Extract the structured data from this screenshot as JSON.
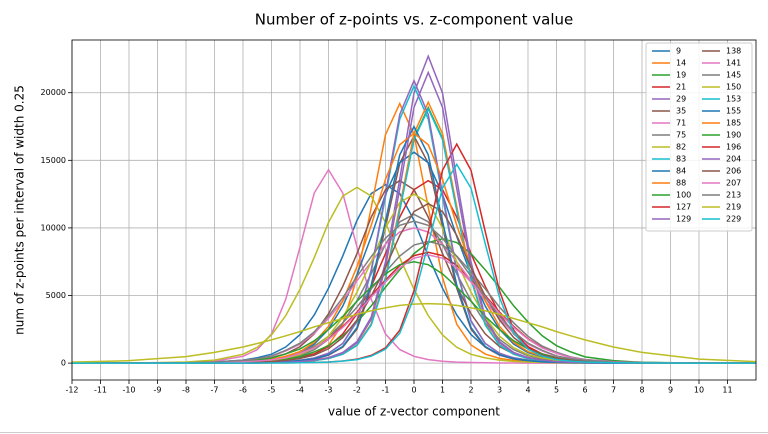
{
  "chart_data": {
    "type": "line",
    "title": "Number of z-points vs. z-component value",
    "xlabel": "value of z-vector component",
    "ylabel": "num of z-points per interval of width 0.25",
    "xlim": [
      -12,
      12
    ],
    "ylim": [
      -1250,
      23900
    ],
    "xticks": [
      -12,
      -11,
      -10,
      -9,
      -8,
      -7,
      -6,
      -5,
      -4,
      -3,
      -2,
      -1,
      0,
      1,
      2,
      3,
      4,
      5,
      6,
      7,
      8,
      9,
      10,
      11
    ],
    "yticks": [
      0,
      5000,
      10000,
      15000,
      20000
    ],
    "grid": true,
    "legend": "upper right",
    "x": [
      -12,
      -10,
      -8,
      -7,
      -6,
      -5.5,
      -5,
      -4.5,
      -4,
      -3.5,
      -3,
      -2.5,
      -2,
      -1.5,
      -1,
      -0.5,
      0,
      0.5,
      1,
      1.5,
      2,
      2.5,
      3,
      3.5,
      4,
      4.5,
      5,
      5.5,
      6,
      7,
      8,
      10,
      12
    ],
    "series": [
      {
        "name": "9",
        "color": "#1f77b4",
        "values": [
          0,
          0,
          30,
          80,
          220,
          400,
          660,
          1190,
          2110,
          3560,
          5540,
          7920,
          10560,
          12540,
          13200,
          12540,
          10560,
          7920,
          5540,
          3560,
          2110,
          1190,
          660,
          400,
          220,
          130,
          80,
          50,
          30,
          0,
          0,
          0,
          0
        ]
      },
      {
        "name": "14",
        "color": "#ff7f0e",
        "values": [
          0,
          0,
          0,
          20,
          40,
          60,
          100,
          190,
          350,
          670,
          1340,
          2880,
          6340,
          11520,
          16900,
          19200,
          16900,
          11520,
          6340,
          2880,
          1340,
          670,
          350,
          190,
          100,
          60,
          40,
          20,
          20,
          0,
          0,
          0,
          0
        ]
      },
      {
        "name": "19",
        "color": "#2ca02c",
        "values": [
          0,
          0,
          0,
          0,
          20,
          20,
          40,
          60,
          90,
          190,
          340,
          660,
          1320,
          2840,
          6240,
          11340,
          16630,
          18900,
          16630,
          11340,
          6240,
          2840,
          1320,
          660,
          340,
          190,
          90,
          60,
          40,
          20,
          0,
          0,
          0
        ]
      },
      {
        "name": "21",
        "color": "#d62728",
        "values": [
          0,
          0,
          0,
          10,
          50,
          80,
          140,
          230,
          410,
          680,
          1220,
          2160,
          3650,
          5670,
          8100,
          10800,
          12830,
          13500,
          12830,
          10800,
          8100,
          5670,
          3650,
          2160,
          1220,
          680,
          410,
          230,
          140,
          50,
          10,
          0,
          0
        ]
      },
      {
        "name": "29",
        "color": "#9467bd",
        "values": [
          0,
          0,
          0,
          0,
          20,
          20,
          50,
          70,
          110,
          230,
          410,
          790,
          1590,
          3410,
          7490,
          13620,
          19980,
          22700,
          19980,
          13620,
          7490,
          3410,
          1590,
          790,
          410,
          230,
          110,
          70,
          50,
          20,
          0,
          0,
          0
        ]
      },
      {
        "name": "35",
        "color": "#8c564b",
        "values": [
          0,
          0,
          0,
          0,
          20,
          30,
          50,
          80,
          170,
          300,
          590,
          1180,
          2520,
          5540,
          10080,
          14780,
          16800,
          14780,
          10080,
          5540,
          2520,
          1180,
          590,
          300,
          170,
          80,
          50,
          30,
          20,
          0,
          0,
          0,
          0
        ]
      },
      {
        "name": "71",
        "color": "#e377c2",
        "values": [
          0,
          0,
          40,
          140,
          500,
          1000,
          2150,
          4720,
          8580,
          12580,
          14300,
          12580,
          8580,
          4720,
          2150,
          1000,
          500,
          260,
          140,
          70,
          40,
          30,
          10,
          10,
          0,
          0,
          0,
          0,
          0,
          0,
          0,
          0,
          0
        ]
      },
      {
        "name": "75",
        "color": "#7f7f7f",
        "values": [
          0,
          0,
          0,
          20,
          70,
          110,
          190,
          330,
          550,
          990,
          1760,
          2970,
          4620,
          6600,
          8800,
          10450,
          11000,
          10450,
          8800,
          6600,
          4620,
          2970,
          1760,
          990,
          550,
          330,
          190,
          110,
          70,
          20,
          0,
          0,
          0
        ]
      },
      {
        "name": "82",
        "color": "#bcbd22",
        "values": [
          0,
          0,
          80,
          220,
          650,
          1170,
          2080,
          3510,
          5460,
          7800,
          10400,
          12350,
          13000,
          12350,
          10400,
          7800,
          5460,
          3510,
          2080,
          1170,
          650,
          390,
          220,
          130,
          80,
          50,
          30,
          10,
          0,
          0,
          0,
          0,
          0
        ]
      },
      {
        "name": "83",
        "color": "#17becf",
        "values": [
          0,
          0,
          0,
          0,
          20,
          40,
          60,
          100,
          210,
          370,
          720,
          1440,
          3080,
          6770,
          12300,
          18040,
          20500,
          18040,
          12300,
          6770,
          3080,
          1440,
          720,
          370,
          210,
          100,
          60,
          40,
          20,
          0,
          0,
          0,
          0
        ]
      },
      {
        "name": "84",
        "color": "#1f77b4",
        "values": [
          0,
          0,
          0,
          30,
          90,
          160,
          270,
          470,
          780,
          1400,
          2500,
          4210,
          6550,
          9360,
          12480,
          14820,
          15600,
          14820,
          12480,
          9360,
          6550,
          4210,
          2500,
          1400,
          780,
          470,
          270,
          160,
          90,
          30,
          0,
          0,
          0
        ]
      },
      {
        "name": "88",
        "color": "#ff7f0e",
        "values": [
          0,
          0,
          0,
          0,
          20,
          20,
          40,
          60,
          100,
          190,
          350,
          680,
          1350,
          2900,
          6370,
          11580,
          16980,
          19300,
          16980,
          11580,
          6370,
          2900,
          1350,
          680,
          350,
          190,
          100,
          60,
          40,
          20,
          0,
          0,
          0
        ]
      },
      {
        "name": "100",
        "color": "#2ca02c",
        "values": [
          0,
          0,
          0,
          20,
          60,
          110,
          180,
          280,
          460,
          830,
          1290,
          2020,
          3040,
          4230,
          5610,
          6900,
          8100,
          8920,
          9200,
          8920,
          8100,
          6900,
          5610,
          4230,
          3040,
          2020,
          1290,
          830,
          460,
          180,
          60,
          0,
          0
        ]
      },
      {
        "name": "127",
        "color": "#d62728",
        "values": [
          0,
          0,
          10,
          30,
          100,
          160,
          250,
          410,
          740,
          1150,
          1800,
          2710,
          3770,
          5000,
          6150,
          7220,
          7950,
          8200,
          7950,
          7220,
          6150,
          5000,
          3770,
          2710,
          1800,
          1150,
          740,
          410,
          250,
          100,
          30,
          0,
          0
        ]
      },
      {
        "name": "129",
        "color": "#9467bd",
        "values": [
          0,
          0,
          0,
          0,
          20,
          40,
          60,
          100,
          210,
          380,
          730,
          1460,
          3140,
          6900,
          12540,
          18390,
          20900,
          18390,
          12540,
          6900,
          3140,
          1460,
          730,
          380,
          210,
          100,
          60,
          40,
          20,
          0,
          0,
          0,
          0
        ]
      },
      {
        "name": "138",
        "color": "#8c564b",
        "values": [
          0,
          0,
          10,
          50,
          140,
          230,
          410,
          680,
          1220,
          2160,
          3650,
          5670,
          8100,
          10800,
          12830,
          13500,
          12830,
          10800,
          8100,
          5670,
          3650,
          2160,
          1220,
          680,
          410,
          230,
          140,
          80,
          50,
          10,
          0,
          0,
          0
        ]
      },
      {
        "name": "141",
        "color": "#e377c2",
        "values": [
          0,
          0,
          20,
          70,
          200,
          300,
          500,
          900,
          1400,
          2200,
          3300,
          4600,
          6100,
          7500,
          8800,
          9700,
          10000,
          9700,
          8800,
          7500,
          6100,
          4600,
          3300,
          2200,
          1400,
          900,
          500,
          300,
          200,
          70,
          20,
          0,
          0
        ]
      },
      {
        "name": "145",
        "color": "#7f7f7f",
        "values": [
          0,
          0,
          10,
          40,
          110,
          180,
          270,
          450,
          810,
          1260,
          1980,
          2970,
          4140,
          5490,
          6750,
          7920,
          8730,
          9000,
          8730,
          7920,
          6750,
          5490,
          4140,
          2970,
          1980,
          1260,
          810,
          450,
          270,
          110,
          40,
          0,
          0
        ]
      },
      {
        "name": "150",
        "color": "#bcbd22",
        "values": [
          0,
          0,
          0,
          30,
          80,
          130,
          210,
          380,
          630,
          1130,
          2000,
          3380,
          5250,
          7500,
          10000,
          11880,
          12500,
          11880,
          10000,
          7500,
          5250,
          3380,
          2000,
          1130,
          630,
          380,
          210,
          130,
          80,
          30,
          0,
          0,
          0
        ]
      },
      {
        "name": "153",
        "color": "#17becf",
        "values": [
          0,
          0,
          0,
          0,
          20,
          20,
          40,
          60,
          90,
          190,
          340,
          660,
          1320,
          2820,
          6200,
          11280,
          16540,
          18800,
          16540,
          11280,
          6200,
          2820,
          1320,
          660,
          340,
          190,
          90,
          60,
          40,
          20,
          0,
          0,
          0
        ]
      },
      {
        "name": "155",
        "color": "#1f77b4",
        "values": [
          0,
          0,
          0,
          0,
          20,
          40,
          50,
          90,
          180,
          320,
          610,
          1230,
          2630,
          5780,
          10500,
          15400,
          17500,
          15400,
          10500,
          5780,
          2630,
          1230,
          610,
          320,
          180,
          90,
          50,
          40,
          20,
          0,
          0,
          0,
          0
        ]
      },
      {
        "name": "185",
        "color": "#ff7f0e",
        "values": [
          0,
          0,
          0,
          30,
          100,
          170,
          290,
          510,
          850,
          1530,
          2720,
          4590,
          7140,
          10200,
          13600,
          16150,
          17000,
          16150,
          13600,
          10200,
          7140,
          4590,
          2720,
          1530,
          850,
          510,
          290,
          170,
          100,
          30,
          0,
          0,
          0
        ]
      },
      {
        "name": "190",
        "color": "#2ca02c",
        "values": [
          0,
          0,
          20,
          50,
          150,
          230,
          380,
          680,
          1050,
          1650,
          2480,
          3450,
          4580,
          5630,
          6600,
          7280,
          7500,
          7280,
          6600,
          5630,
          4580,
          3450,
          2480,
          1650,
          1050,
          680,
          380,
          230,
          150,
          50,
          20,
          0,
          0
        ]
      },
      {
        "name": "196",
        "color": "#d62728",
        "values": [
          0,
          0,
          0,
          0,
          0,
          0,
          20,
          20,
          30,
          50,
          80,
          160,
          290,
          570,
          1130,
          2430,
          5350,
          9720,
          14260,
          16200,
          14260,
          9720,
          5350,
          2430,
          1130,
          570,
          290,
          160,
          80,
          30,
          20,
          0,
          0
        ]
      },
      {
        "name": "204",
        "color": "#9467bd",
        "values": [
          0,
          0,
          0,
          0,
          20,
          20,
          40,
          60,
          110,
          220,
          390,
          750,
          1510,
          3230,
          7100,
          12900,
          18920,
          21500,
          18920,
          12900,
          7100,
          3230,
          1510,
          750,
          390,
          220,
          110,
          60,
          40,
          20,
          0,
          0,
          0
        ]
      },
      {
        "name": "206",
        "color": "#8c564b",
        "values": [
          0,
          0,
          0,
          10,
          50,
          70,
          120,
          200,
          350,
          590,
          1060,
          1890,
          3190,
          4960,
          7080,
          9440,
          11210,
          11800,
          11210,
          9440,
          7080,
          4960,
          3190,
          1890,
          1060,
          590,
          350,
          200,
          120,
          50,
          10,
          0,
          0
        ]
      },
      {
        "name": "207",
        "color": "#e377c2",
        "values": [
          0,
          0,
          10,
          30,
          100,
          160,
          240,
          400,
          720,
          1120,
          1760,
          2640,
          3680,
          4880,
          6000,
          7040,
          7760,
          8000,
          7760,
          7040,
          6000,
          4880,
          3680,
          2640,
          1760,
          1120,
          720,
          400,
          240,
          100,
          30,
          0,
          0
        ]
      },
      {
        "name": "213",
        "color": "#7f7f7f",
        "values": [
          0,
          0,
          20,
          70,
          210,
          320,
          530,
          950,
          1470,
          2310,
          3470,
          4830,
          6410,
          7880,
          9240,
          10190,
          10500,
          10190,
          9240,
          7880,
          6410,
          4830,
          3470,
          2310,
          1470,
          950,
          530,
          320,
          210,
          70,
          20,
          0,
          0
        ]
      },
      {
        "name": "219",
        "color": "#bcbd22",
        "values": [
          70,
          180,
          480,
          790,
          1190,
          1450,
          1720,
          2020,
          2330,
          2680,
          2990,
          3300,
          3610,
          3870,
          4090,
          4270,
          4360,
          4400,
          4360,
          4270,
          4090,
          3870,
          3610,
          3300,
          2990,
          2680,
          2330,
          2020,
          1720,
          1190,
          790,
          290,
          110
        ]
      },
      {
        "name": "229",
        "color": "#17becf",
        "values": [
          0,
          0,
          0,
          0,
          0,
          0,
          10,
          10,
          30,
          40,
          70,
          150,
          260,
          510,
          1030,
          2210,
          4850,
          8820,
          12940,
          14700,
          12940,
          8820,
          4850,
          2210,
          1030,
          510,
          260,
          150,
          70,
          30,
          10,
          0,
          0
        ]
      }
    ]
  }
}
